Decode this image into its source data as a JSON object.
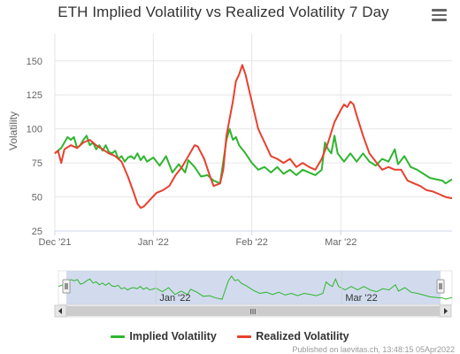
{
  "chart_data": {
    "type": "line",
    "title": "ETH Implied Volatility vs Realized Volatility 7 Day",
    "xlabel": "",
    "ylabel": "Volatility",
    "x_start": "2021-12-01",
    "x_end": "2022-04-05",
    "xticks": [
      {
        "date": "2021-12-01",
        "label": "Dec '21"
      },
      {
        "date": "2022-01-01",
        "label": "Jan '22"
      },
      {
        "date": "2022-02-01",
        "label": "Feb '22"
      },
      {
        "date": "2022-03-01",
        "label": "Mar '22"
      }
    ],
    "navigator_ticks": [
      {
        "date": "2022-01-01",
        "label": "Jan '22"
      },
      {
        "date": "2022-03-01",
        "label": "Mar '22"
      }
    ],
    "yticks": [
      25,
      50,
      75,
      100,
      125,
      150
    ],
    "ylim": [
      25,
      170
    ],
    "grid": true,
    "legend_position": "bottom-center",
    "series": [
      {
        "name": "Implied Volatility",
        "color": "#2fb52f",
        "points": [
          [
            "2021-12-01",
            82
          ],
          [
            "2021-12-03",
            86
          ],
          [
            "2021-12-04",
            90
          ],
          [
            "2021-12-05",
            94
          ],
          [
            "2021-12-06",
            92
          ],
          [
            "2021-12-07",
            94
          ],
          [
            "2021-12-08",
            86
          ],
          [
            "2021-12-09",
            88
          ],
          [
            "2021-12-10",
            92
          ],
          [
            "2021-12-11",
            95
          ],
          [
            "2021-12-12",
            88
          ],
          [
            "2021-12-13",
            90
          ],
          [
            "2021-12-14",
            85
          ],
          [
            "2021-12-15",
            88
          ],
          [
            "2021-12-16",
            84
          ],
          [
            "2021-12-17",
            88
          ],
          [
            "2021-12-18",
            83
          ],
          [
            "2021-12-19",
            82
          ],
          [
            "2021-12-20",
            84
          ],
          [
            "2021-12-21",
            78
          ],
          [
            "2021-12-22",
            80
          ],
          [
            "2021-12-23",
            76
          ],
          [
            "2021-12-24",
            79
          ],
          [
            "2021-12-25",
            80
          ],
          [
            "2021-12-26",
            78
          ],
          [
            "2021-12-27",
            82
          ],
          [
            "2021-12-28",
            77
          ],
          [
            "2021-12-29",
            80
          ],
          [
            "2021-12-30",
            76
          ],
          [
            "2022-01-01",
            79
          ],
          [
            "2022-01-03",
            73
          ],
          [
            "2022-01-05",
            80
          ],
          [
            "2022-01-07",
            68
          ],
          [
            "2022-01-09",
            74
          ],
          [
            "2022-01-11",
            68
          ],
          [
            "2022-01-12",
            77
          ],
          [
            "2022-01-14",
            72
          ],
          [
            "2022-01-16",
            65
          ],
          [
            "2022-01-18",
            66
          ],
          [
            "2022-01-20",
            62
          ],
          [
            "2022-01-22",
            60
          ],
          [
            "2022-01-24",
            92
          ],
          [
            "2022-01-25",
            100
          ],
          [
            "2022-01-26",
            92
          ],
          [
            "2022-01-27",
            94
          ],
          [
            "2022-01-28",
            88
          ],
          [
            "2022-01-30",
            82
          ],
          [
            "2022-02-01",
            75
          ],
          [
            "2022-02-03",
            70
          ],
          [
            "2022-02-05",
            72
          ],
          [
            "2022-02-07",
            68
          ],
          [
            "2022-02-09",
            72
          ],
          [
            "2022-02-11",
            67
          ],
          [
            "2022-02-13",
            70
          ],
          [
            "2022-02-15",
            66
          ],
          [
            "2022-02-17",
            70
          ],
          [
            "2022-02-19",
            68
          ],
          [
            "2022-02-21",
            66
          ],
          [
            "2022-02-23",
            70
          ],
          [
            "2022-02-24",
            90
          ],
          [
            "2022-02-25",
            85
          ],
          [
            "2022-02-26",
            82
          ],
          [
            "2022-02-27",
            95
          ],
          [
            "2022-02-28",
            82
          ],
          [
            "2022-03-02",
            76
          ],
          [
            "2022-03-04",
            82
          ],
          [
            "2022-03-06",
            76
          ],
          [
            "2022-03-08",
            82
          ],
          [
            "2022-03-10",
            76
          ],
          [
            "2022-03-12",
            73
          ],
          [
            "2022-03-14",
            78
          ],
          [
            "2022-03-16",
            76
          ],
          [
            "2022-03-18",
            85
          ],
          [
            "2022-03-19",
            74
          ],
          [
            "2022-03-21",
            80
          ],
          [
            "2022-03-23",
            72
          ],
          [
            "2022-03-25",
            70
          ],
          [
            "2022-03-27",
            67
          ],
          [
            "2022-03-29",
            64
          ],
          [
            "2022-03-31",
            63
          ],
          [
            "2022-04-02",
            62
          ],
          [
            "2022-04-03",
            60
          ],
          [
            "2022-04-05",
            63
          ]
        ]
      },
      {
        "name": "Realized Volatility",
        "color": "#e8402f",
        "points": [
          [
            "2021-12-01",
            82
          ],
          [
            "2021-12-02",
            84
          ],
          [
            "2021-12-03",
            75
          ],
          [
            "2021-12-04",
            85
          ],
          [
            "2021-12-06",
            88
          ],
          [
            "2021-12-08",
            86
          ],
          [
            "2021-12-10",
            90
          ],
          [
            "2021-12-12",
            92
          ],
          [
            "2021-12-14",
            88
          ],
          [
            "2021-12-16",
            85
          ],
          [
            "2021-12-18",
            82
          ],
          [
            "2021-12-20",
            80
          ],
          [
            "2021-12-22",
            76
          ],
          [
            "2021-12-24",
            65
          ],
          [
            "2021-12-26",
            52
          ],
          [
            "2021-12-27",
            45
          ],
          [
            "2021-12-28",
            42
          ],
          [
            "2021-12-29",
            43
          ],
          [
            "2021-12-31",
            48
          ],
          [
            "2022-01-02",
            53
          ],
          [
            "2022-01-04",
            55
          ],
          [
            "2022-01-06",
            58
          ],
          [
            "2022-01-08",
            66
          ],
          [
            "2022-01-10",
            72
          ],
          [
            "2022-01-12",
            80
          ],
          [
            "2022-01-14",
            88
          ],
          [
            "2022-01-15",
            87
          ],
          [
            "2022-01-17",
            78
          ],
          [
            "2022-01-19",
            64
          ],
          [
            "2022-01-20",
            58
          ],
          [
            "2022-01-22",
            60
          ],
          [
            "2022-01-23",
            70
          ],
          [
            "2022-01-24",
            95
          ],
          [
            "2022-01-26",
            120
          ],
          [
            "2022-01-27",
            135
          ],
          [
            "2022-01-28",
            140
          ],
          [
            "2022-01-29",
            147
          ],
          [
            "2022-01-30",
            140
          ],
          [
            "2022-01-31",
            130
          ],
          [
            "2022-02-02",
            110
          ],
          [
            "2022-02-03",
            100
          ],
          [
            "2022-02-05",
            90
          ],
          [
            "2022-02-07",
            80
          ],
          [
            "2022-02-09",
            78
          ],
          [
            "2022-02-11",
            75
          ],
          [
            "2022-02-13",
            78
          ],
          [
            "2022-02-15",
            72
          ],
          [
            "2022-02-17",
            75
          ],
          [
            "2022-02-19",
            72
          ],
          [
            "2022-02-21",
            70
          ],
          [
            "2022-02-23",
            78
          ],
          [
            "2022-02-25",
            90
          ],
          [
            "2022-02-27",
            105
          ],
          [
            "2022-03-01",
            114
          ],
          [
            "2022-03-02",
            118
          ],
          [
            "2022-03-03",
            116
          ],
          [
            "2022-03-04",
            120
          ],
          [
            "2022-03-05",
            118
          ],
          [
            "2022-03-06",
            110
          ],
          [
            "2022-03-08",
            95
          ],
          [
            "2022-03-10",
            82
          ],
          [
            "2022-03-12",
            76
          ],
          [
            "2022-03-14",
            70
          ],
          [
            "2022-03-16",
            72
          ],
          [
            "2022-03-18",
            70
          ],
          [
            "2022-03-20",
            70
          ],
          [
            "2022-03-22",
            62
          ],
          [
            "2022-03-24",
            60
          ],
          [
            "2022-03-26",
            58
          ],
          [
            "2022-03-28",
            55
          ],
          [
            "2022-03-30",
            54
          ],
          [
            "2022-04-01",
            52
          ],
          [
            "2022-04-03",
            50
          ],
          [
            "2022-04-05",
            49
          ]
        ]
      }
    ]
  },
  "navigator": {
    "scroll_left_icon": "arrow-left-icon",
    "scroll_right_icon": "arrow-right-icon",
    "grip_label": "III"
  },
  "menu_icon": "hamburger-menu-icon",
  "credit": "Published on laevitas.ch, 13:48:15 05Apr2022"
}
